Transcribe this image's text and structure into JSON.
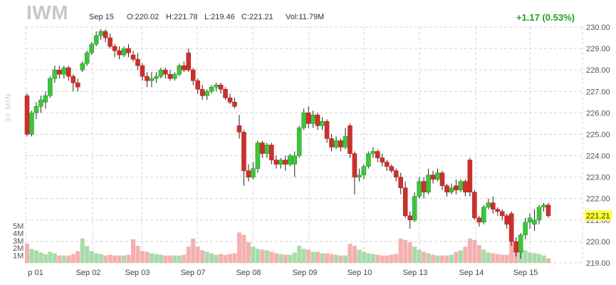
{
  "header": {
    "ticker": "IWM",
    "date": "Sep 15",
    "open": "O:220.02",
    "high": "H:221.78",
    "low": "L:219.46",
    "close": "C:221.21",
    "volume": "Vol:11.79M",
    "change": "+1.17 (0.53%)",
    "timeframe": "30 MIN"
  },
  "colors": {
    "up": "#2ca02c",
    "up_fill": "#3ec43e",
    "down": "#cc1f1f",
    "down_fill": "#c8322c",
    "vol_up": "#a8dba8",
    "vol_down": "#f4b0b0",
    "change": "#1e9e1e",
    "price_tag_bg": "#ffff33",
    "grid": "#d4d4d4"
  },
  "chart_data": {
    "type": "candlestick",
    "ylim": [
      219,
      230
    ],
    "y_ticks": [
      "230.00",
      "229.00",
      "228.00",
      "227.00",
      "226.00",
      "225.00",
      "224.00",
      "223.00",
      "222.00",
      "221.00",
      "220.00",
      "219.00"
    ],
    "volume_ticks": [
      "5M",
      "4M",
      "3M",
      "2M",
      "1M"
    ],
    "x_labels": [
      "p 01",
      "Sep 02",
      "Sep 03",
      "Sep 07",
      "Sep 08",
      "Sep 09",
      "Sep 10",
      "Sep 13",
      "Sep 14",
      "Sep 15"
    ],
    "last_price": "221.21",
    "candles": [
      [
        226.8,
        225.0,
        226.9,
        224.9,
        2.6
      ],
      [
        225.0,
        226.0,
        226.1,
        224.9,
        1.9
      ],
      [
        226.0,
        226.3,
        226.5,
        225.7,
        1.7
      ],
      [
        226.3,
        226.6,
        226.8,
        226.0,
        1.4
      ],
      [
        226.5,
        226.8,
        227.0,
        226.2,
        1.2
      ],
      [
        226.8,
        227.6,
        227.7,
        226.7,
        1.5
      ],
      [
        227.6,
        228.0,
        228.2,
        227.4,
        1.3
      ],
      [
        228.0,
        227.8,
        228.2,
        227.6,
        1.0
      ],
      [
        227.8,
        228.1,
        228.2,
        227.6,
        1.0
      ],
      [
        228.1,
        227.7,
        228.2,
        227.5,
        1.0
      ],
      [
        227.7,
        227.4,
        227.8,
        227.0,
        1.2
      ],
      [
        227.4,
        227.2,
        227.6,
        227.0,
        1.6
      ],
      [
        228.0,
        228.3,
        228.4,
        227.9,
        3.3
      ],
      [
        228.3,
        228.8,
        228.9,
        228.2,
        2.3
      ],
      [
        228.8,
        229.2,
        229.3,
        228.7,
        1.6
      ],
      [
        229.2,
        229.6,
        229.8,
        229.1,
        1.3
      ],
      [
        229.6,
        229.8,
        229.9,
        229.4,
        1.2
      ],
      [
        229.8,
        229.5,
        229.9,
        229.3,
        1.0
      ],
      [
        229.5,
        229.1,
        229.7,
        229.0,
        1.1
      ],
      [
        229.1,
        228.9,
        229.2,
        228.6,
        1.0
      ],
      [
        228.9,
        228.7,
        229.1,
        228.5,
        1.0
      ],
      [
        228.7,
        229.0,
        229.1,
        228.6,
        1.0
      ],
      [
        229.0,
        228.8,
        229.2,
        228.6,
        1.1
      ],
      [
        228.7,
        228.5,
        228.9,
        228.4,
        3.2
      ],
      [
        228.5,
        228.2,
        228.8,
        228.0,
        2.3
      ],
      [
        228.2,
        227.7,
        228.3,
        227.5,
        1.6
      ],
      [
        227.7,
        227.5,
        227.9,
        227.2,
        1.5
      ],
      [
        227.5,
        227.6,
        227.9,
        227.2,
        1.3
      ],
      [
        227.6,
        227.7,
        227.9,
        227.4,
        1.2
      ],
      [
        227.7,
        228.0,
        228.1,
        227.6,
        1.1
      ],
      [
        228.0,
        227.8,
        228.1,
        227.6,
        1.0
      ],
      [
        227.8,
        227.6,
        228.0,
        227.5,
        1.0
      ],
      [
        227.6,
        227.8,
        227.9,
        227.5,
        1.0
      ],
      [
        227.8,
        228.2,
        228.3,
        227.7,
        1.0
      ],
      [
        228.2,
        228.0,
        228.4,
        227.9,
        1.1
      ],
      [
        228.8,
        228.0,
        229.0,
        227.9,
        2.2
      ],
      [
        228.0,
        227.5,
        228.1,
        227.3,
        3.3
      ],
      [
        227.5,
        227.1,
        227.6,
        226.9,
        2.2
      ],
      [
        227.1,
        226.8,
        227.3,
        226.6,
        1.7
      ],
      [
        226.8,
        227.0,
        227.1,
        226.6,
        1.5
      ],
      [
        227.0,
        227.2,
        227.3,
        226.9,
        1.3
      ],
      [
        227.2,
        227.3,
        227.4,
        227.0,
        1.1
      ],
      [
        227.3,
        227.1,
        227.4,
        226.9,
        1.2
      ],
      [
        227.1,
        226.7,
        227.2,
        226.6,
        1.1
      ],
      [
        226.7,
        226.5,
        226.9,
        226.4,
        1.2
      ],
      [
        226.5,
        226.3,
        226.7,
        226.2,
        1.3
      ],
      [
        225.4,
        225.1,
        225.9,
        224.8,
        4.1
      ],
      [
        225.1,
        223.3,
        225.2,
        222.6,
        3.8
      ],
      [
        223.3,
        223.0,
        223.6,
        222.8,
        2.8
      ],
      [
        223.0,
        223.4,
        223.7,
        222.9,
        2.2
      ],
      [
        223.4,
        224.6,
        224.7,
        223.2,
        1.9
      ],
      [
        224.6,
        224.1,
        224.7,
        223.9,
        1.8
      ],
      [
        224.1,
        224.5,
        224.6,
        223.9,
        1.7
      ],
      [
        224.5,
        223.8,
        224.6,
        223.6,
        1.5
      ],
      [
        223.8,
        223.6,
        224.0,
        223.4,
        1.3
      ],
      [
        223.6,
        223.8,
        223.9,
        223.4,
        1.2
      ],
      [
        223.8,
        223.6,
        224.0,
        223.3,
        1.1
      ],
      [
        223.6,
        224.0,
        224.1,
        223.5,
        1.1
      ],
      [
        223.6,
        224.0,
        224.2,
        223.0,
        1.4
      ],
      [
        224.0,
        225.3,
        225.4,
        223.9,
        2.3
      ],
      [
        225.3,
        226.0,
        226.2,
        225.2,
        1.9
      ],
      [
        226.0,
        225.5,
        226.3,
        225.3,
        1.8
      ],
      [
        225.5,
        225.9,
        226.1,
        225.3,
        1.5
      ],
      [
        225.9,
        225.4,
        226.0,
        225.2,
        1.5
      ],
      [
        225.4,
        225.6,
        225.8,
        225.2,
        1.3
      ],
      [
        225.6,
        224.8,
        225.7,
        224.6,
        1.3
      ],
      [
        224.8,
        224.4,
        225.0,
        224.2,
        1.2
      ],
      [
        224.4,
        224.7,
        224.9,
        224.3,
        1.1
      ],
      [
        224.7,
        224.4,
        224.8,
        224.2,
        1.0
      ],
      [
        224.4,
        224.9,
        225.3,
        224.3,
        1.0
      ],
      [
        225.4,
        224.1,
        225.5,
        223.9,
        2.6
      ],
      [
        224.1,
        223.0,
        224.2,
        222.2,
        2.3
      ],
      [
        223.0,
        223.1,
        223.4,
        222.8,
        1.8
      ],
      [
        223.1,
        223.5,
        223.6,
        222.9,
        1.5
      ],
      [
        223.5,
        224.1,
        224.2,
        223.4,
        1.3
      ],
      [
        224.1,
        224.2,
        224.4,
        223.9,
        1.2
      ],
      [
        224.2,
        223.9,
        224.3,
        223.7,
        1.1
      ],
      [
        223.9,
        223.7,
        224.1,
        223.5,
        1.0
      ],
      [
        223.7,
        223.5,
        223.8,
        223.3,
        1.0
      ],
      [
        223.5,
        223.3,
        223.6,
        223.2,
        1.1
      ],
      [
        223.3,
        223.0,
        223.4,
        222.8,
        1.2
      ],
      [
        223.0,
        222.5,
        223.2,
        222.2,
        3.3
      ],
      [
        222.5,
        221.2,
        222.8,
        221.1,
        3.1
      ],
      [
        221.2,
        221.0,
        221.4,
        220.6,
        2.8
      ],
      [
        221.0,
        222.1,
        222.3,
        220.9,
        2.2
      ],
      [
        222.1,
        222.8,
        223.0,
        222.0,
        1.8
      ],
      [
        222.8,
        222.3,
        223.0,
        222.0,
        1.5
      ],
      [
        222.3,
        223.1,
        223.4,
        222.2,
        1.3
      ],
      [
        223.1,
        222.9,
        223.3,
        222.7,
        1.1
      ],
      [
        222.9,
        223.2,
        223.4,
        222.8,
        1.0
      ],
      [
        223.2,
        222.6,
        223.3,
        222.4,
        1.0
      ],
      [
        222.6,
        222.3,
        222.7,
        222.1,
        1.0
      ],
      [
        222.3,
        222.5,
        222.7,
        222.2,
        1.1
      ],
      [
        222.6,
        222.4,
        222.9,
        222.2,
        1.5
      ],
      [
        222.4,
        222.8,
        222.9,
        222.3,
        1.7
      ],
      [
        222.8,
        222.3,
        222.9,
        222.1,
        2.2
      ],
      [
        223.8,
        222.3,
        223.9,
        222.1,
        3.3
      ],
      [
        222.3,
        221.1,
        222.4,
        221.0,
        3.1
      ],
      [
        221.1,
        220.9,
        221.2,
        220.7,
        2.4
      ],
      [
        220.9,
        221.6,
        221.7,
        220.8,
        1.8
      ],
      [
        221.6,
        221.8,
        222.0,
        221.5,
        1.4
      ],
      [
        221.8,
        221.5,
        222.1,
        221.3,
        1.3
      ],
      [
        221.5,
        221.4,
        221.6,
        221.2,
        1.2
      ],
      [
        221.4,
        221.2,
        221.5,
        221.0,
        1.1
      ],
      [
        221.2,
        220.8,
        221.3,
        220.6,
        1.1
      ],
      [
        221.3,
        220.0,
        221.4,
        219.8,
        2.9
      ],
      [
        220.0,
        219.5,
        220.2,
        219.3,
        2.6
      ],
      [
        219.5,
        220.3,
        220.4,
        219.2,
        2.4
      ],
      [
        220.3,
        220.9,
        221.1,
        220.1,
        1.7
      ],
      [
        220.9,
        221.1,
        221.3,
        220.6,
        1.4
      ],
      [
        220.8,
        221.0,
        221.5,
        220.5,
        1.3
      ],
      [
        221.0,
        221.6,
        221.7,
        220.8,
        1.2
      ],
      [
        221.6,
        221.7,
        221.8,
        221.4,
        1.0
      ],
      [
        221.7,
        221.2,
        221.8,
        221.1,
        0.6
      ]
    ]
  }
}
